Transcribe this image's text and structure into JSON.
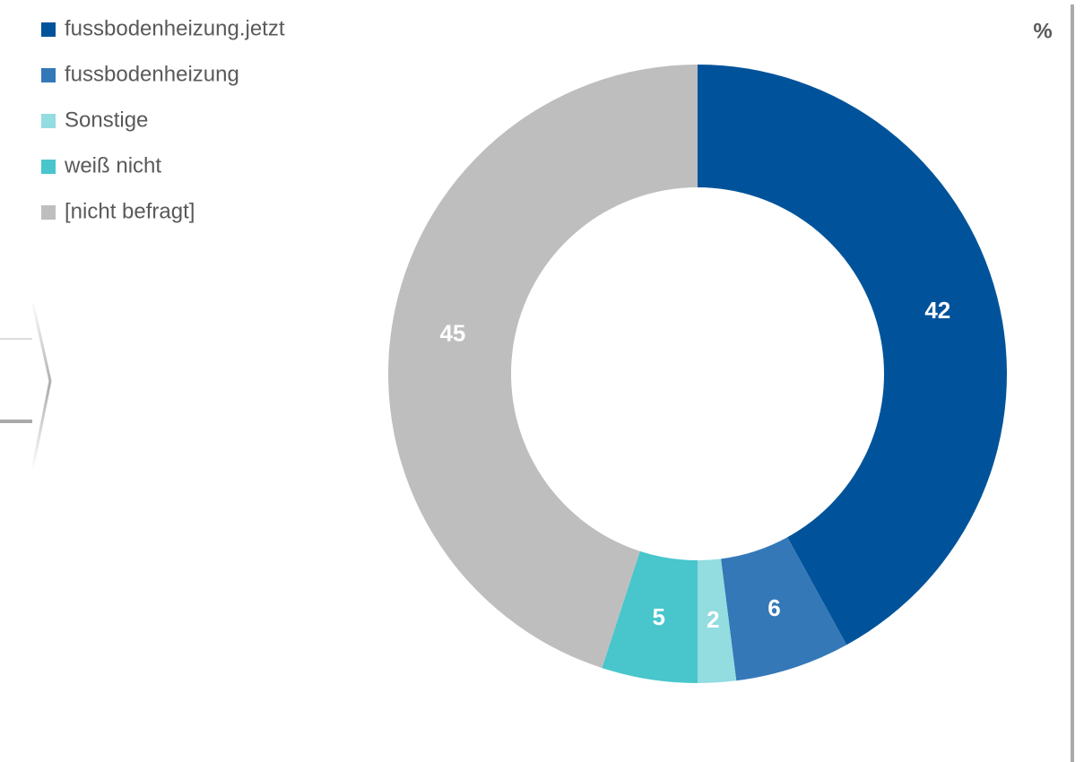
{
  "chart_data": {
    "type": "donut",
    "unit": "%",
    "categories": [
      "fussbodenheizung.jetzt",
      "fussbodenheizung",
      "Sonstige",
      "weiß nicht",
      "[nicht befragt]"
    ],
    "values": [
      42,
      6,
      2,
      5,
      45
    ],
    "colors": [
      "#00539a",
      "#3478b8",
      "#93dce0",
      "#48c6cc",
      "#bebebe"
    ],
    "legend": "top-left"
  }
}
